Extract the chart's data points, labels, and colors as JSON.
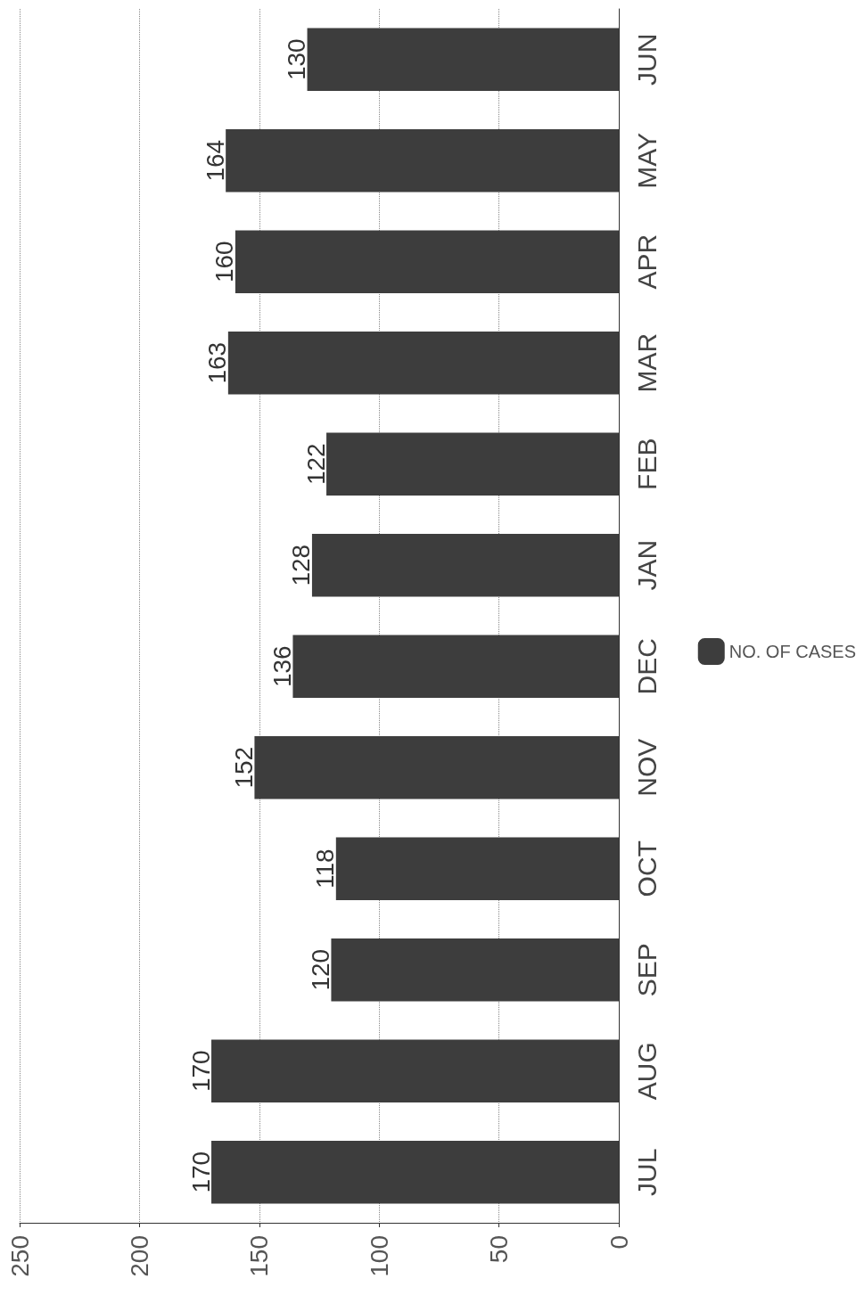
{
  "chart_data": {
    "type": "bar",
    "orientation": "horizontal",
    "categories": [
      "JUN",
      "MAY",
      "APR",
      "MAR",
      "FEB",
      "JAN",
      "DEC",
      "NOV",
      "OCT",
      "SEP",
      "AUG",
      "JUL"
    ],
    "series": [
      {
        "name": "NO. OF CASES",
        "color": "#3d3d3d",
        "values": [
          130,
          164,
          160,
          163,
          122,
          128,
          136,
          152,
          118,
          120,
          170,
          170
        ]
      }
    ],
    "xlim": [
      250,
      0
    ],
    "xticks": [
      0,
      50,
      100,
      150,
      200,
      250
    ],
    "grid": "x",
    "legend": "right",
    "data_labels": true
  }
}
